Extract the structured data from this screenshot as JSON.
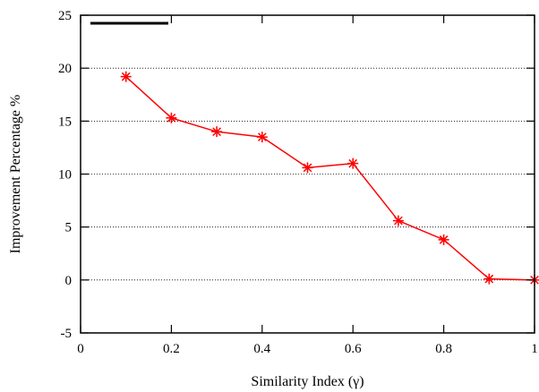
{
  "chart_data": {
    "type": "line",
    "title": "",
    "xlabel": "Similarity Index (γ)",
    "ylabel": "Improvement Percentage %",
    "xlim": [
      0,
      1
    ],
    "ylim": [
      -5,
      25
    ],
    "x_ticks": [
      0,
      0.2,
      0.4,
      0.6,
      0.8,
      1
    ],
    "x_tick_labels": [
      "0",
      "0.2",
      "0.4",
      "0.6",
      "0.8",
      "1"
    ],
    "y_ticks": [
      -5,
      0,
      5,
      10,
      15,
      20,
      25
    ],
    "y_tick_labels": [
      "-5",
      "0",
      "5",
      "10",
      "15",
      "20",
      "25"
    ],
    "grid": "horizontal dotted",
    "legend": "top-left",
    "series": [
      {
        "color": "#ff0000",
        "marker": "asterisk",
        "x": [
          0.1,
          0.2,
          0.3,
          0.4,
          0.5,
          0.6,
          0.7,
          0.8,
          0.9,
          1.0
        ],
        "y": [
          19.2,
          15.3,
          14.0,
          13.5,
          10.6,
          11.0,
          5.6,
          3.8,
          0.1,
          0.0
        ]
      }
    ]
  }
}
